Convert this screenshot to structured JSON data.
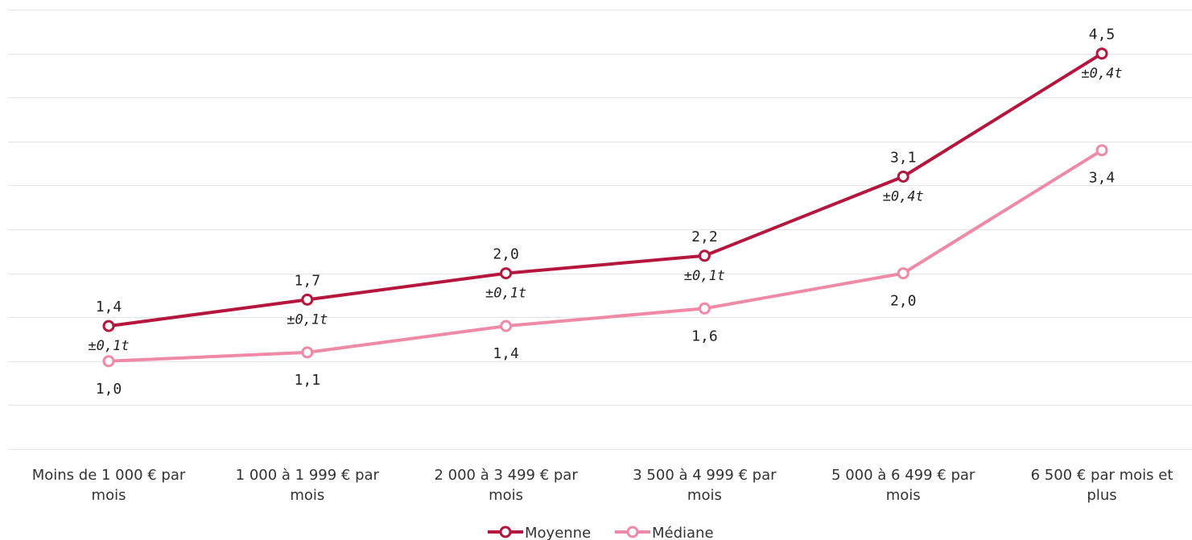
{
  "chart_data": {
    "type": "line",
    "categories": [
      [
        "Moins de 1 000 € par",
        "mois"
      ],
      [
        "1 000 à 1 999 € par",
        "mois"
      ],
      [
        "2 000 à 3 499 € par",
        "mois"
      ],
      [
        "3 500 à 4 999 € par",
        "mois"
      ],
      [
        "5 000 à 6 499 € par",
        "mois"
      ],
      [
        "6 500 € par mois et",
        "plus"
      ]
    ],
    "series": [
      {
        "name": "Moyenne",
        "color": "#b5163e",
        "values": [
          1.4,
          1.7,
          2.0,
          2.2,
          3.1,
          4.5
        ],
        "labels": [
          "1,4",
          "1,7",
          "2,0",
          "2,2",
          "3,1",
          "4,5"
        ],
        "error_labels": [
          "±0,1t",
          "±0,1t",
          "±0,1t",
          "±0,1t",
          "±0,4t",
          "±0,4t"
        ]
      },
      {
        "name": "Médiane",
        "color": "#ef8aa6",
        "values": [
          1.0,
          1.1,
          1.4,
          1.6,
          2.0,
          3.4
        ],
        "labels": [
          "1,0",
          "1,1",
          "1,4",
          "1,6",
          "2,0",
          "3,4"
        ]
      }
    ],
    "ylim": [
      0,
      5
    ],
    "grid": true,
    "legend": "bottom-center"
  }
}
